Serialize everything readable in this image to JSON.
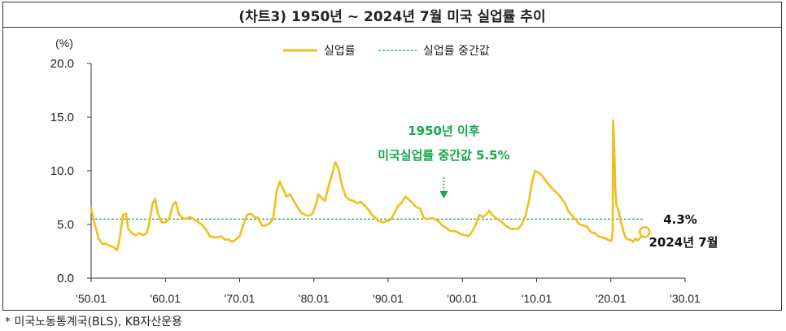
{
  "title": "(차트3) 1950년 ~ 2024년 7월 미국 실업률 추이",
  "source_note": "*  미국노동통계국(BLS), KB자산운용",
  "colors": {
    "unemployment": "#F2BE1A",
    "median": "#14A84A",
    "axis": "#333333",
    "annotation": "#14A84A"
  },
  "chart_data": {
    "type": "line",
    "title": "(차트3) 1950년 ~ 2024년 7월 미국 실업률 추이",
    "ylabel": "(%)",
    "ylim": [
      0,
      20
    ],
    "yticks": [
      "20.0",
      "15.0",
      "10.0",
      "5.0",
      "0.0"
    ],
    "xlim": [
      1950,
      2030
    ],
    "xticks": [
      "'50.01",
      "'60.01",
      "'70.01",
      "'80.01",
      "'90.01",
      "'00.01",
      "'10.01",
      "'20.01",
      "'30.01"
    ],
    "legend": {
      "position": "top-center",
      "entries": [
        "실업률",
        "실업률 중간값"
      ]
    },
    "series": [
      {
        "name": "실업률",
        "x": [
          1950.0,
          1950.5,
          1951.0,
          1951.5,
          1952.0,
          1952.5,
          1953.0,
          1953.5,
          1953.8,
          1954.3,
          1954.7,
          1955.0,
          1955.5,
          1956.0,
          1956.5,
          1957.0,
          1957.5,
          1957.8,
          1958.3,
          1958.6,
          1959.0,
          1959.5,
          1960.0,
          1960.5,
          1961.0,
          1961.4,
          1961.8,
          1962.3,
          1962.8,
          1963.3,
          1963.8,
          1964.5,
          1965.0,
          1965.5,
          1966.0,
          1966.5,
          1967.0,
          1967.5,
          1968.0,
          1968.5,
          1969.0,
          1969.5,
          1970.0,
          1970.5,
          1971.0,
          1971.5,
          1972.0,
          1972.5,
          1973.0,
          1973.5,
          1974.0,
          1974.5,
          1975.0,
          1975.4,
          1975.8,
          1976.3,
          1976.8,
          1977.3,
          1977.8,
          1978.3,
          1978.8,
          1979.3,
          1979.8,
          1980.3,
          1980.6,
          1981.0,
          1981.5,
          1982.0,
          1982.5,
          1982.9,
          1983.3,
          1983.8,
          1984.3,
          1984.8,
          1985.3,
          1985.8,
          1986.3,
          1986.8,
          1987.3,
          1987.8,
          1988.3,
          1988.8,
          1989.3,
          1989.8,
          1990.3,
          1990.8,
          1991.3,
          1991.8,
          1992.3,
          1992.8,
          1993.3,
          1993.8,
          1994.3,
          1994.8,
          1995.3,
          1995.8,
          1996.3,
          1996.8,
          1997.3,
          1997.8,
          1998.3,
          1998.8,
          1999.3,
          1999.8,
          2000.3,
          2000.8,
          2001.3,
          2001.8,
          2002.3,
          2002.8,
          2003.3,
          2003.6,
          2004.0,
          2004.5,
          2005.0,
          2005.5,
          2006.0,
          2006.5,
          2007.0,
          2007.5,
          2008.0,
          2008.5,
          2009.0,
          2009.4,
          2009.8,
          2010.3,
          2010.8,
          2011.3,
          2011.8,
          2012.3,
          2012.8,
          2013.3,
          2013.8,
          2014.3,
          2014.8,
          2015.3,
          2015.8,
          2016.3,
          2016.8,
          2017.3,
          2017.8,
          2018.3,
          2018.8,
          2019.3,
          2019.8,
          2020.1,
          2020.25,
          2020.3,
          2020.4,
          2020.5,
          2020.6,
          2020.75,
          2021.0,
          2021.3,
          2021.6,
          2021.9,
          2022.2,
          2022.5,
          2022.8,
          2023.0,
          2023.3,
          2023.6,
          2024.0,
          2024.3,
          2024.55
        ],
        "values": [
          6.5,
          5.0,
          3.7,
          3.2,
          3.2,
          3.0,
          2.9,
          2.6,
          3.5,
          5.9,
          6.0,
          4.6,
          4.2,
          4.0,
          4.2,
          4.0,
          4.2,
          5.0,
          7.0,
          7.4,
          6.0,
          5.2,
          5.2,
          5.5,
          6.8,
          7.1,
          6.0,
          5.6,
          5.5,
          5.7,
          5.5,
          5.2,
          4.9,
          4.5,
          3.9,
          3.8,
          3.8,
          3.9,
          3.6,
          3.6,
          3.4,
          3.6,
          3.9,
          5.0,
          5.9,
          6.0,
          5.7,
          5.6,
          4.9,
          4.9,
          5.1,
          5.5,
          8.1,
          9.0,
          8.4,
          7.6,
          7.8,
          7.2,
          6.6,
          6.1,
          5.9,
          5.8,
          6.0,
          6.9,
          7.8,
          7.5,
          7.2,
          8.6,
          9.8,
          10.8,
          10.2,
          8.6,
          7.6,
          7.3,
          7.2,
          7.0,
          7.1,
          6.8,
          6.4,
          5.9,
          5.6,
          5.3,
          5.2,
          5.3,
          5.4,
          6.0,
          6.7,
          7.0,
          7.6,
          7.3,
          7.0,
          6.6,
          6.5,
          5.6,
          5.5,
          5.6,
          5.5,
          5.3,
          4.9,
          4.7,
          4.4,
          4.4,
          4.3,
          4.1,
          4.0,
          3.9,
          4.3,
          5.0,
          5.9,
          5.7,
          6.0,
          6.3,
          5.9,
          5.6,
          5.4,
          5.1,
          4.8,
          4.6,
          4.6,
          4.6,
          5.0,
          5.8,
          7.3,
          9.0,
          10.0,
          9.8,
          9.5,
          9.0,
          8.6,
          8.2,
          7.9,
          7.5,
          7.0,
          6.2,
          5.8,
          5.4,
          5.0,
          4.9,
          4.8,
          4.3,
          4.2,
          3.9,
          3.8,
          3.7,
          3.5,
          3.5,
          4.4,
          14.7,
          13.2,
          11.0,
          8.4,
          6.8,
          6.4,
          5.4,
          4.6,
          3.9,
          3.6,
          3.6,
          3.5,
          3.4,
          3.7,
          3.5,
          3.8,
          3.9,
          4.3
        ]
      },
      {
        "name": "실업률 중간값",
        "values": [
          5.5
        ],
        "style": "dashed"
      }
    ],
    "annotations": [
      {
        "lines": [
          "1950년 이후",
          "미국실업률 중간값 5.5%"
        ],
        "x": 1997.5,
        "y": 7.5,
        "arrow": "down"
      },
      {
        "value_label": "4.3%",
        "date_label": "2024년 7월",
        "x": 2024.55,
        "y": 4.3
      }
    ]
  }
}
